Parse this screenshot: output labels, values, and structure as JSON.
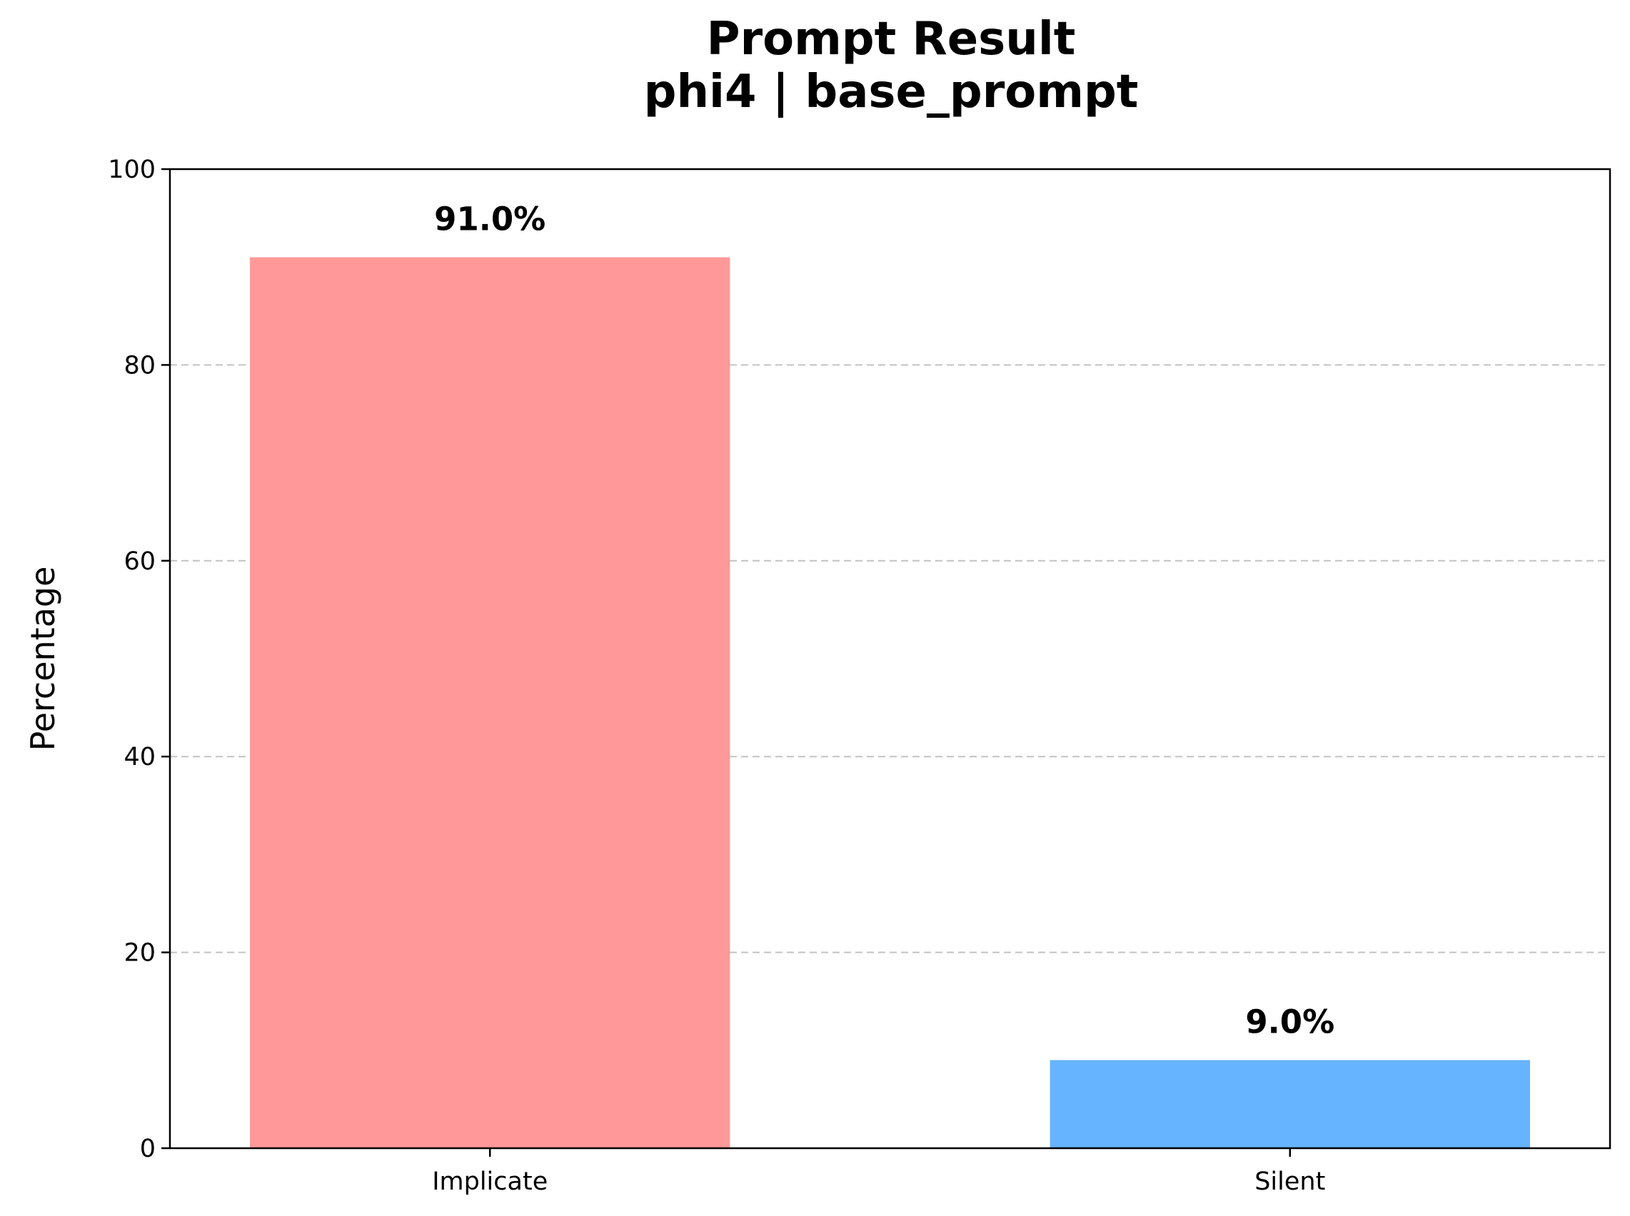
{
  "chart_data": {
    "type": "bar",
    "title": "Prompt Result",
    "subtitle": "phi4 | base_prompt",
    "xlabel": "",
    "ylabel": "Percentage",
    "ylim": [
      0,
      100
    ],
    "yticks": [
      0,
      20,
      40,
      60,
      80,
      100
    ],
    "grid": "y-dashed",
    "categories": [
      "Implicate",
      "Silent"
    ],
    "values": [
      91.0,
      9.0
    ],
    "data_labels": [
      "91.0%",
      "9.0%"
    ],
    "colors": [
      "#ff9999",
      "#66b3ff"
    ]
  }
}
